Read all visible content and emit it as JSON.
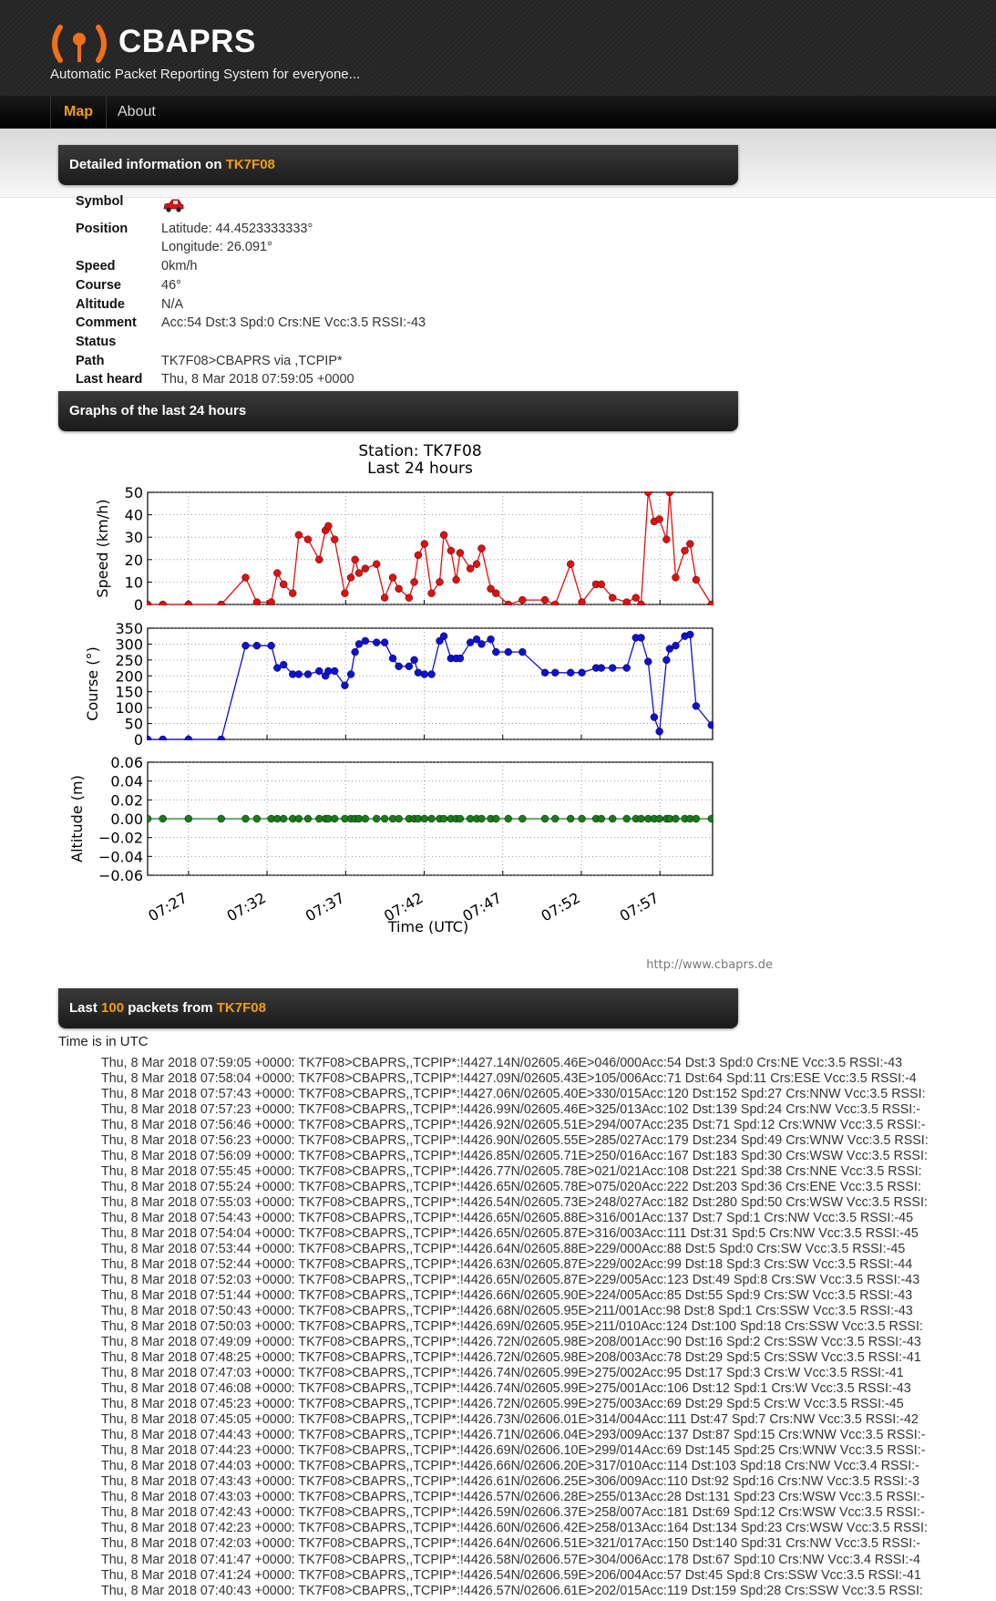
{
  "header": {
    "logo": "CBAPRS",
    "tagline": "Automatic Packet Reporting System for everyone..."
  },
  "nav": [
    "Map",
    "About"
  ],
  "details": {
    "title": "Detailed information on",
    "station": "TK7F08",
    "rows": [
      {
        "label": "Symbol",
        "value": null
      },
      {
        "label": "Position",
        "value": "Latitude: 44.4523333333°",
        "value2": "Longitude: 26.091°"
      },
      {
        "label": "Speed",
        "value": "0km/h"
      },
      {
        "label": "Course",
        "value": "46°"
      },
      {
        "label": "Altitude",
        "value": "N/A"
      },
      {
        "label": "Comment Status",
        "value": "Acc:54 Dst:3 Spd:0 Crs:NE Vcc:3.5 RSSI:-43"
      },
      {
        "label": "Path",
        "value": "TK7F08>CBAPRS via ,TCPIP*"
      },
      {
        "label": "Last heard",
        "value": "Thu, 8 Mar 2018 07:59:05 +0000"
      }
    ]
  },
  "graphs": {
    "title": "Graphs of the last 24 hours",
    "credit": "http://www.cbaprs.de"
  },
  "chart_data": {
    "type": "line",
    "title": "Station: TK7F08",
    "subtitle": "Last 24 hours",
    "xlabel": "Time (UTC)",
    "grid": true,
    "x": [
      "07:24:24",
      "07:25:22",
      "07:27:00",
      "07:29:05",
      "07:30:38",
      "07:31:21",
      "07:32:16",
      "07:32:39",
      "07:33:03",
      "07:33:38",
      "07:34:01",
      "07:34:36",
      "07:35:19",
      "07:35:43",
      "07:35:54",
      "07:36:18",
      "07:36:57",
      "07:37:20",
      "07:37:36",
      "07:37:51",
      "07:38:15",
      "07:38:58",
      "07:39:29",
      "07:40:00",
      "07:40:23",
      "07:41:02",
      "07:41:22",
      "07:41:37",
      "07:42:01",
      "07:42:28",
      "07:42:59",
      "07:43:15",
      "07:43:42",
      "07:44:02",
      "07:44:17",
      "07:44:56",
      "07:45:20",
      "07:45:39",
      "07:46:14",
      "07:46:34",
      "07:47:21",
      "07:48:15",
      "07:49:41",
      "07:50:20",
      "07:51:19",
      "07:52:02",
      "07:52:56",
      "07:53:16",
      "07:53:59",
      "07:54:53",
      "07:55:28",
      "07:55:48",
      "07:56:15",
      "07:56:38",
      "07:56:58",
      "07:57:25",
      "07:57:37",
      "07:58:00",
      "07:58:35",
      "07:58:55",
      "07:59:18",
      "08:00:17"
    ],
    "xlim": [
      "07:24:24",
      "08:00:21"
    ],
    "xticks": [
      "07:27",
      "07:32",
      "07:37",
      "07:42",
      "07:47",
      "07:52",
      "07:57"
    ],
    "panels": [
      {
        "ylabel": "Speed (km/h)",
        "color": "#e01010",
        "ylim": [
          0,
          50
        ],
        "yticks": [
          0,
          10,
          20,
          30,
          40,
          50
        ],
        "values": [
          0,
          0,
          0,
          0,
          12,
          1,
          1,
          14,
          9,
          5,
          31,
          29,
          20,
          33,
          35,
          29,
          5,
          12,
          20,
          14,
          16,
          18,
          3,
          12,
          7,
          3,
          10,
          22,
          27,
          5,
          10,
          31,
          24,
          11,
          23,
          16,
          18,
          25,
          7,
          5,
          0,
          2,
          2,
          0,
          18,
          1,
          9,
          9,
          3,
          1,
          3,
          0,
          50,
          37,
          38,
          29,
          50,
          12,
          24,
          27,
          11,
          0
        ]
      },
      {
        "ylabel": "Course (°)",
        "color": "#1010d0",
        "ylim": [
          0,
          350
        ],
        "yticks": [
          0,
          50,
          100,
          150,
          200,
          250,
          300,
          350
        ],
        "values": [
          0,
          0,
          0,
          0,
          295,
          295,
          295,
          225,
          235,
          205,
          205,
          205,
          215,
          200,
          215,
          215,
          170,
          205,
          275,
          300,
          310,
          305,
          305,
          255,
          230,
          230,
          250,
          210,
          205,
          205,
          310,
          325,
          255,
          255,
          255,
          305,
          315,
          300,
          315,
          275,
          275,
          275,
          210,
          210,
          210,
          210,
          225,
          225,
          225,
          225,
          320,
          320,
          245,
          70,
          25,
          250,
          285,
          295,
          325,
          330,
          105,
          45
        ]
      },
      {
        "ylabel": "Altitude (m)",
        "color": "#1a7a1a",
        "ylim": [
          -0.06,
          0.06
        ],
        "yticks": [
          0.06,
          0.04,
          0.02,
          {
            "value": 0,
            "label": "0.00"
          },
          {
            "value": -0.02,
            "label": "−0.02"
          },
          {
            "value": -0.04,
            "label": "−0.04"
          },
          {
            "value": -0.06,
            "label": "−0.06"
          }
        ],
        "values": [
          0,
          0,
          0,
          0,
          0,
          0,
          0,
          0,
          0,
          0,
          0,
          0,
          0,
          0,
          0,
          0,
          0,
          0,
          0,
          0,
          0,
          0,
          0,
          0,
          0,
          0,
          0,
          0,
          0,
          0,
          0,
          0,
          0,
          0,
          0,
          0,
          0,
          0,
          0,
          0,
          0,
          0,
          0,
          0,
          0,
          0,
          0,
          0,
          0,
          0,
          0,
          0,
          0,
          0,
          0,
          0,
          0,
          0,
          0,
          0,
          0,
          0
        ]
      }
    ]
  },
  "packets": {
    "prefix": "Last",
    "count": "100",
    "middle": "packets from",
    "station": "TK7F08",
    "note": "Time is in UTC",
    "items": [
      "Thu, 8 Mar 2018 07:59:05 +0000: TK7F08>CBAPRS,,TCPIP*:!4427.14N/02605.46E>046/000Acc:54 Dst:3 Spd:0 Crs:NE Vcc:3.5 RSSI:-43",
      "Thu, 8 Mar 2018 07:58:04 +0000: TK7F08>CBAPRS,,TCPIP*:!4427.09N/02605.43E>105/006Acc:71 Dst:64 Spd:11 Crs:ESE Vcc:3.5 RSSI:-4",
      "Thu, 8 Mar 2018 07:57:43 +0000: TK7F08>CBAPRS,,TCPIP*:!4427.06N/02605.40E>330/015Acc:120 Dst:152 Spd:27 Crs:NNW Vcc:3.5 RSSI:",
      "Thu, 8 Mar 2018 07:57:23 +0000: TK7F08>CBAPRS,,TCPIP*:!4426.99N/02605.46E>325/013Acc:102 Dst:139 Spd:24 Crs:NW Vcc:3.5 RSSI:-",
      "Thu, 8 Mar 2018 07:56:46 +0000: TK7F08>CBAPRS,,TCPIP*:!4426.92N/02605.51E>294/007Acc:235 Dst:71 Spd:12 Crs:WNW Vcc:3.5 RSSI:-",
      "Thu, 8 Mar 2018 07:56:23 +0000: TK7F08>CBAPRS,,TCPIP*:!4426.90N/02605.55E>285/027Acc:179 Dst:234 Spd:49 Crs:WNW Vcc:3.5 RSSI:",
      "Thu, 8 Mar 2018 07:56:09 +0000: TK7F08>CBAPRS,,TCPIP*:!4426.85N/02605.71E>250/016Acc:167 Dst:183 Spd:30 Crs:WSW Vcc:3.5 RSSI:",
      "Thu, 8 Mar 2018 07:55:45 +0000: TK7F08>CBAPRS,,TCPIP*:!4426.77N/02605.78E>021/021Acc:108 Dst:221 Spd:38 Crs:NNE Vcc:3.5 RSSI:",
      "Thu, 8 Mar 2018 07:55:24 +0000: TK7F08>CBAPRS,,TCPIP*:!4426.65N/02605.78E>075/020Acc:222 Dst:203 Spd:36 Crs:ENE Vcc:3.5 RSSI:",
      "Thu, 8 Mar 2018 07:55:03 +0000: TK7F08>CBAPRS,,TCPIP*:!4426.54N/02605.73E>248/027Acc:182 Dst:280 Spd:50 Crs:WSW Vcc:3.5 RSSI:",
      "Thu, 8 Mar 2018 07:54:43 +0000: TK7F08>CBAPRS,,TCPIP*:!4426.65N/02605.88E>316/001Acc:137 Dst:7 Spd:1 Crs:NW Vcc:3.5 RSSI:-45",
      "Thu, 8 Mar 2018 07:54:04 +0000: TK7F08>CBAPRS,,TCPIP*:!4426.65N/02605.87E>316/003Acc:111 Dst:31 Spd:5 Crs:NW Vcc:3.5 RSSI:-45",
      "Thu, 8 Mar 2018 07:53:44 +0000: TK7F08>CBAPRS,,TCPIP*:!4426.64N/02605.88E>229/000Acc:88 Dst:5 Spd:0 Crs:SW Vcc:3.5 RSSI:-45",
      "Thu, 8 Mar 2018 07:52:44 +0000: TK7F08>CBAPRS,,TCPIP*:!4426.63N/02605.87E>229/002Acc:99 Dst:18 Spd:3 Crs:SW Vcc:3.5 RSSI:-44",
      "Thu, 8 Mar 2018 07:52:03 +0000: TK7F08>CBAPRS,,TCPIP*:!4426.65N/02605.87E>229/005Acc:123 Dst:49 Spd:8 Crs:SW Vcc:3.5 RSSI:-43",
      "Thu, 8 Mar 2018 07:51:44 +0000: TK7F08>CBAPRS,,TCPIP*:!4426.66N/02605.90E>224/005Acc:85 Dst:55 Spd:9 Crs:SW Vcc:3.5 RSSI:-43",
      "Thu, 8 Mar 2018 07:50:43 +0000: TK7F08>CBAPRS,,TCPIP*:!4426.68N/02605.95E>211/001Acc:98 Dst:8 Spd:1 Crs:SSW Vcc:3.5 RSSI:-43",
      "Thu, 8 Mar 2018 07:50:03 +0000: TK7F08>CBAPRS,,TCPIP*:!4426.69N/02605.95E>211/010Acc:124 Dst:100 Spd:18 Crs:SSW Vcc:3.5 RSSI:",
      "Thu, 8 Mar 2018 07:49:09 +0000: TK7F08>CBAPRS,,TCPIP*:!4426.72N/02605.98E>208/001Acc:90 Dst:16 Spd:2 Crs:SSW Vcc:3.5 RSSI:-43",
      "Thu, 8 Mar 2018 07:48:25 +0000: TK7F08>CBAPRS,,TCPIP*:!4426.72N/02605.98E>208/003Acc:78 Dst:29 Spd:5 Crs:SSW Vcc:3.5 RSSI:-41",
      "Thu, 8 Mar 2018 07:47:03 +0000: TK7F08>CBAPRS,,TCPIP*:!4426.74N/02605.99E>275/002Acc:95 Dst:17 Spd:3 Crs:W Vcc:3.5 RSSI:-41",
      "Thu, 8 Mar 2018 07:46:08 +0000: TK7F08>CBAPRS,,TCPIP*:!4426.74N/02605.99E>275/001Acc:106 Dst:12 Spd:1 Crs:W Vcc:3.5 RSSI:-43",
      "Thu, 8 Mar 2018 07:45:23 +0000: TK7F08>CBAPRS,,TCPIP*:!4426.72N/02605.99E>275/003Acc:69 Dst:29 Spd:5 Crs:W Vcc:3.5 RSSI:-45",
      "Thu, 8 Mar 2018 07:45:05 +0000: TK7F08>CBAPRS,,TCPIP*:!4426.73N/02606.01E>314/004Acc:111 Dst:47 Spd:7 Crs:NW Vcc:3.5 RSSI:-42",
      "Thu, 8 Mar 2018 07:44:43 +0000: TK7F08>CBAPRS,,TCPIP*:!4426.71N/02606.04E>293/009Acc:137 Dst:87 Spd:15 Crs:WNW Vcc:3.5 RSSI:-",
      "Thu, 8 Mar 2018 07:44:23 +0000: TK7F08>CBAPRS,,TCPIP*:!4426.69N/02606.10E>299/014Acc:69 Dst:145 Spd:25 Crs:WNW Vcc:3.5 RSSI:-",
      "Thu, 8 Mar 2018 07:44:03 +0000: TK7F08>CBAPRS,,TCPIP*:!4426.66N/02606.20E>317/010Acc:114 Dst:103 Spd:18 Crs:NW Vcc:3.4 RSSI:-",
      "Thu, 8 Mar 2018 07:43:43 +0000: TK7F08>CBAPRS,,TCPIP*:!4426.61N/02606.25E>306/009Acc:110 Dst:92 Spd:16 Crs:NW Vcc:3.5 RSSI:-3",
      "Thu, 8 Mar 2018 07:43:03 +0000: TK7F08>CBAPRS,,TCPIP*:!4426.57N/02606.28E>255/013Acc:28 Dst:131 Spd:23 Crs:WSW Vcc:3.5 RSSI:-",
      "Thu, 8 Mar 2018 07:42:43 +0000: TK7F08>CBAPRS,,TCPIP*:!4426.59N/02606.37E>258/007Acc:181 Dst:69 Spd:12 Crs:WSW Vcc:3.5 RSSI:-",
      "Thu, 8 Mar 2018 07:42:23 +0000: TK7F08>CBAPRS,,TCPIP*:!4426.60N/02606.42E>258/013Acc:164 Dst:134 Spd:23 Crs:WSW Vcc:3.5 RSSI:",
      "Thu, 8 Mar 2018 07:42:03 +0000: TK7F08>CBAPRS,,TCPIP*:!4426.64N/02606.51E>321/017Acc:150 Dst:140 Spd:31 Crs:NW Vcc:3.5 RSSI:-",
      "Thu, 8 Mar 2018 07:41:47 +0000: TK7F08>CBAPRS,,TCPIP*:!4426.58N/02606.57E>304/006Acc:178 Dst:67 Spd:10 Crs:NW Vcc:3.4 RSSI:-4",
      "Thu, 8 Mar 2018 07:41:24 +0000: TK7F08>CBAPRS,,TCPIP*:!4426.54N/02606.59E>206/004Acc:57 Dst:45 Spd:8 Crs:SSW Vcc:3.5 RSSI:-41",
      "Thu, 8 Mar 2018 07:40:43 +0000: TK7F08>CBAPRS,,TCPIP*:!4426.57N/02606.61E>202/015Acc:119 Dst:159 Spd:28 Crs:SSW Vcc:3.5 RSSI:"
    ]
  }
}
